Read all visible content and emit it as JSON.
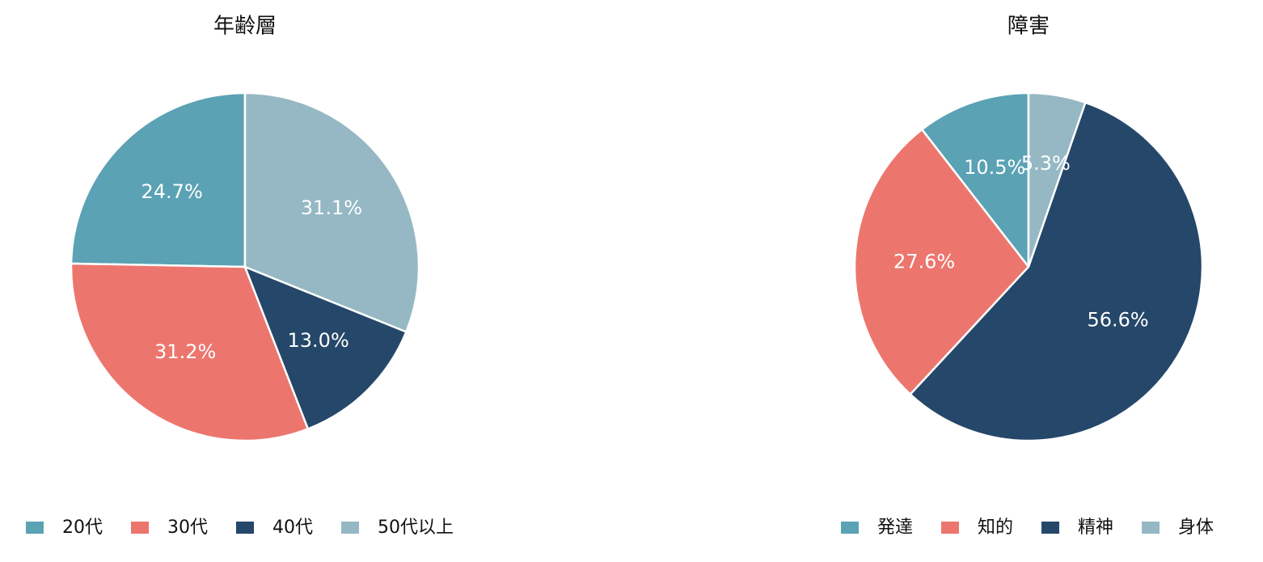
{
  "chart_data": [
    {
      "type": "pie",
      "title": "年齢層",
      "categories": [
        "20代",
        "30代",
        "40代",
        "50代以上"
      ],
      "values": [
        24.7,
        31.2,
        13.0,
        31.1
      ],
      "value_labels": [
        "24.7%",
        "31.2%",
        "13.0%",
        "31.1%"
      ],
      "colors": [
        "#5aa2b4",
        "#ec766e",
        "#254769",
        "#95b8c4"
      ],
      "legend": "bottom"
    },
    {
      "type": "pie",
      "title": "障害",
      "categories": [
        "発達",
        "知的",
        "精神",
        "身体"
      ],
      "values": [
        10.5,
        27.6,
        56.6,
        5.3
      ],
      "value_labels": [
        "10.5%",
        "27.6%",
        "56.6%",
        "5.3%"
      ],
      "colors": [
        "#5aa2b4",
        "#ec766e",
        "#254769",
        "#95b8c4"
      ],
      "legend": "bottom"
    }
  ]
}
